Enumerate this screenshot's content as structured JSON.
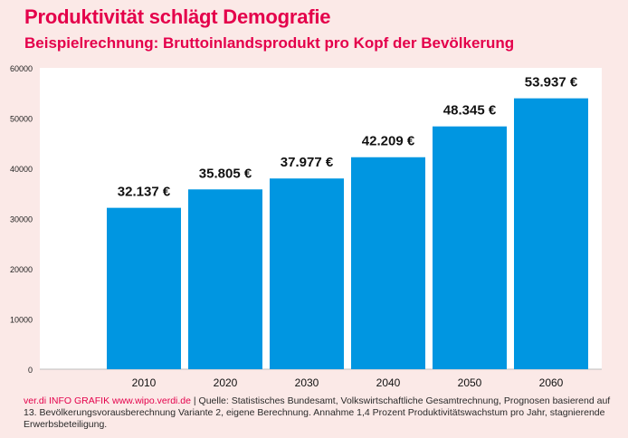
{
  "chart_data": {
    "type": "bar",
    "title": "Produktivität schlägt Demografie",
    "subtitle": "Beispielrechnung: Bruttoinlandsprodukt pro Kopf der Bevölkerung",
    "categories": [
      "2010",
      "2020",
      "2030",
      "2040",
      "2050",
      "2060"
    ],
    "values": [
      32137,
      35805,
      37977,
      42209,
      48345,
      53937
    ],
    "value_labels": [
      "32.137 €",
      "35.805 €",
      "37.977 €",
      "42.209 €",
      "48.345 €",
      "53.937 €"
    ],
    "ylim": [
      0,
      60000
    ],
    "yticks": [
      0,
      10000,
      20000,
      30000,
      40000,
      50000,
      60000
    ],
    "ytick_labels": [
      "0",
      "10000",
      "20000",
      "30000",
      "40000",
      "50000",
      "60000"
    ],
    "xlabel": "",
    "ylabel": "",
    "grid": false,
    "bar_color": "#0096e1",
    "plot_background": "#ffffff"
  },
  "footer": {
    "source_brand": "ver.di INFO GRAFIK www.wipo.verdi.de",
    "separator": " | ",
    "source_text": "Quelle: Statistisches Bundesamt, Volkswirtschaftliche Gesamtrechnung, Prognosen basierend auf 13. Bevölkerungsvorausberechnung Variante 2, eigene Berechnung. Annahme 1,4 Prozent Produktivitätswachstum pro Jahr, stagnierende Erwerbsbeteiligung."
  },
  "colors": {
    "accent": "#e4004b",
    "background": "#fbe9e7"
  }
}
